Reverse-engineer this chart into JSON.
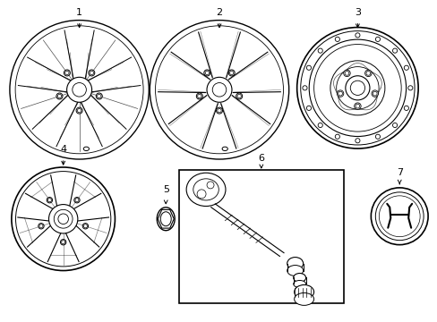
{
  "bg_color": "#ffffff",
  "line_color": "#000000",
  "figsize": [
    4.89,
    3.6
  ],
  "dpi": 100
}
